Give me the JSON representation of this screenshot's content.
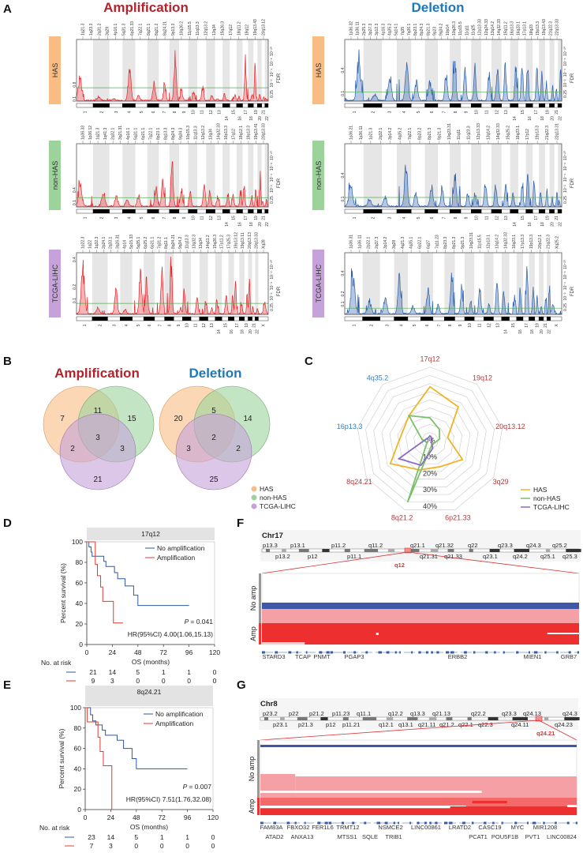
{
  "panel_labels": {
    "a": "A",
    "b": "B",
    "c": "C",
    "d": "D",
    "e": "E",
    "f": "F",
    "g": "G"
  },
  "colors": {
    "amplification": "#e8262a",
    "deletion": "#2a5fad",
    "amplification_title": "#b5222b",
    "deletion_title": "#1f78b8",
    "HAS": "#f9bd84",
    "non-HAS": "#9bd39b",
    "TCGA-LIHC": "#c6a2da",
    "threshold": "#4caf50",
    "radar_HAS": "#f0b323",
    "radar_non-HAS": "#7cbf6a",
    "radar_TCGA-LIHC": "#8a6bc2",
    "km_no_amp": "#2e5a9c",
    "km_amp": "#e0392f",
    "heat_blue": "#3f57a6",
    "heat_pink": "#f5a0a4",
    "heat_red": "#ee2f2f",
    "heat_mid": "#f46a6a"
  },
  "panel_a": {
    "amplification_title": "Amplification",
    "deletion_title": "Deletion",
    "fdr_label": "FDR",
    "right_ticks": [
      "0.25",
      "10⁻²",
      "10⁻⁴",
      "10⁻⁸",
      "10⁻²⁰"
    ],
    "chromosomes": [
      "1",
      "2",
      "3",
      "4",
      "5",
      "6",
      "7",
      "8",
      "9",
      "10",
      "11",
      "12",
      "13",
      "14",
      "15",
      "16",
      "17",
      "18",
      "19",
      "20",
      "21",
      "22"
    ],
    "chromosomes_tcga": [
      "1",
      "2",
      "3",
      "4",
      "5",
      "6",
      "7",
      "8",
      "9",
      "10",
      "11",
      "12",
      "13",
      "14",
      "15",
      "16",
      "17",
      "18",
      "19",
      "20",
      "21",
      "22",
      "X"
    ],
    "amplification": [
      {
        "sample": "HAS",
        "ylim": [
          0,
          3
        ],
        "left_ticks": [
          "0.1",
          "0.8"
        ],
        "left_tick_values": [
          0.1,
          0.8
        ],
        "threshold": 0.65,
        "peaks": [
          1.3,
          0.2,
          0.1,
          1.9,
          0.3,
          1.1,
          0.8,
          2.7,
          0.6,
          0.5,
          0.8,
          0.3,
          0.1,
          0.4,
          0.3,
          0.2,
          2.6,
          0.4,
          2.1,
          0.4,
          0.2,
          0.1
        ],
        "cytobands": [
          "1q21.3",
          "1q23.3",
          "2q31.2",
          "3q29",
          "4p16.1",
          "5q31.3",
          "6p21.33",
          "7q22.1",
          "8q21.1",
          "8q21.2",
          "8q24.21",
          "9p13.3",
          "10q26.2",
          "11p15.5",
          "11q13.3",
          "12q13.2",
          "13q34",
          "15q26.3",
          "17q12",
          "18q11.2",
          "19q12",
          "19q13.43",
          "20q13.12"
        ]
      },
      {
        "sample": "non-HAS",
        "ylim": [
          0,
          1.5
        ],
        "left_ticks": [
          "0.1",
          "0.4"
        ],
        "left_tick_values": [
          0.1,
          0.4
        ],
        "threshold": 0.22,
        "peaks": [
          0.6,
          0.4,
          0.3,
          0.2,
          0.3,
          0.5,
          0.7,
          1.3,
          0.5,
          0.4,
          0.6,
          0.5,
          0.3,
          0.3,
          0.3,
          0.4,
          0.7,
          0.3,
          0.5,
          0.7,
          0.2,
          0.2
        ],
        "cytobands": [
          "1p36.33",
          "1p36.12",
          "1q21.3",
          "1q41.3",
          "2q32.1",
          "3q21.31",
          "4p16.1",
          "5q31.1",
          "6p21.1",
          "7q22.1",
          "8p23.1",
          "8q13.3",
          "8q24.3",
          "9q34.3",
          "10p15.3",
          "11q13.3",
          "12q13.2",
          "13q34",
          "14q32.33",
          "16p13.3",
          "17q12",
          "18q12.1",
          "19p13.3",
          "19q13.41",
          "20q13.33"
        ]
      },
      {
        "sample": "TCGA-LIHC",
        "ylim": [
          0,
          0.45
        ],
        "left_ticks": [
          "0.1",
          "0.2",
          "0.4"
        ],
        "left_tick_values": [
          0.1,
          0.2,
          0.4
        ],
        "threshold": 0.08,
        "peaks": [
          0.4,
          0.05,
          0.2,
          0.04,
          0.35,
          0.3,
          0.35,
          0.42,
          0.05,
          0.2,
          0.15,
          0.1,
          0.05,
          0.12,
          0.2,
          0.15,
          0.3,
          0.1,
          0.15,
          0.35,
          0.05,
          0.05,
          0.1
        ],
        "cytobands": [
          "1p22.3",
          "1q22",
          "1q32.3",
          "2p24.1",
          "2q33.1",
          "3q26.31",
          "4p14",
          "5p15.33",
          "5q35.1",
          "6p25.2",
          "6p21.1",
          "7q31.2",
          "8q11.1",
          "8q24.21",
          "9q34.2",
          "11q13.3",
          "13q32.3",
          "13q34",
          "14q11.2",
          "15q26.3",
          "17p11.2",
          "17q25.3",
          "19p13.12",
          "19q13.11",
          "20q13.13",
          "20q13.33",
          "Xq28"
        ]
      }
    ],
    "deletion": [
      {
        "sample": "HAS",
        "ylim": [
          0,
          0.8
        ],
        "left_ticks": [
          "0.1",
          "0.4"
        ],
        "left_tick_values": [
          0.1,
          0.4
        ],
        "threshold": 0.12,
        "peaks": [
          0.55,
          0.1,
          0.35,
          0.55,
          0.3,
          0.3,
          0.4,
          0.6,
          0.45,
          0.5,
          0.4,
          0.5,
          0.55,
          0.5,
          0.55,
          0.6,
          0.6,
          0.4,
          0.3,
          0.2,
          0.2,
          0.6
        ],
        "cytobands": [
          "1p36.32",
          "1p36.11",
          "2p25.3",
          "3p27.3",
          "3p12.3",
          "4p16.3",
          "4q35.2",
          "5q14.1",
          "7q35",
          "7q36.1",
          "8p23.1",
          "8p24.3",
          "8p21.3",
          "9p23",
          "9q34.2",
          "10p14",
          "10q26.3",
          "11p15.5",
          "11q11",
          "11q25",
          "12p13.33",
          "12q24.33",
          "13q14.2",
          "14q32.33",
          "15q11.2",
          "16p13.3",
          "16q23.1",
          "17p13.1",
          "18q23",
          "19p13.3",
          "19q13.43",
          "21q22.3",
          "22q13.33"
        ]
      },
      {
        "sample": "non-HAS",
        "ylim": [
          0,
          0.8
        ],
        "left_ticks": [
          "0.1",
          "0.4"
        ],
        "left_tick_values": [
          0.1,
          0.4
        ],
        "threshold": 0.12,
        "peaks": [
          0.3,
          0.1,
          0.15,
          0.6,
          0.2,
          0.3,
          0.25,
          0.5,
          0.2,
          0.2,
          0.4,
          0.3,
          0.3,
          0.2,
          0.3,
          0.6,
          0.45,
          0.2,
          0.3,
          0.1,
          0.2,
          0.1
        ],
        "cytobands": [
          "1p36.21",
          "1p36.11",
          "1p21.3",
          "2q32.1",
          "3p14.2",
          "4q35.2",
          "7q22.1",
          "8p23.2",
          "8p21.3",
          "9p21.3",
          "10q23.31",
          "11q11",
          "11q23.3",
          "12p13.33",
          "13q14.2",
          "14q32.33",
          "15q25.2",
          "16q23.1",
          "17p12",
          "19p13.3",
          "21q22.3",
          "22q13.31"
        ]
      },
      {
        "sample": "TCGA-LIHC",
        "ylim": [
          0,
          0.6
        ],
        "left_ticks": [
          "0.1",
          "0.2",
          "0.4"
        ],
        "left_tick_values": [
          0.1,
          0.2,
          0.4
        ],
        "threshold": 0.06,
        "peaks": [
          0.45,
          0.15,
          0.2,
          0.45,
          0.1,
          0.3,
          0.1,
          0.5,
          0.3,
          0.15,
          0.3,
          0.1,
          0.4,
          0.3,
          0.2,
          0.3,
          0.55,
          0.3,
          0.2,
          0.1,
          0.2,
          0.35,
          0.1
        ],
        "cytobands": [
          "1p36.31",
          "1p36.11",
          "2p22.1",
          "2q37.3",
          "3p14.2",
          "3q28",
          "4q21.3",
          "4q35.1",
          "6p22.1",
          "6q27",
          "7q11.23",
          "8p23.3",
          "8p21.3",
          "9p21.3",
          "10q23.31",
          "11p15.5",
          "12p13.1",
          "13q14.2",
          "14q32.33",
          "16q23.1",
          "17p13.3",
          "19p13.3",
          "20p12.1",
          "21q22.3",
          "Xq25.2"
        ]
      }
    ]
  },
  "panel_b": {
    "amplification": {
      "title": "Amplification",
      "only_HAS": "7",
      "only_nonHAS": "15",
      "only_TCGA": "21",
      "HAS_nonHAS": "11",
      "HAS_TCGA": "2",
      "nonHAS_TCGA": "3",
      "all": "3"
    },
    "deletion": {
      "title": "Deletion",
      "only_HAS": "20",
      "only_nonHAS": "14",
      "only_TCGA": "25",
      "HAS_nonHAS": "5",
      "HAS_TCGA": "3",
      "nonHAS_TCGA": "2",
      "all": "2"
    },
    "legend": [
      "HAS",
      "non-HAS",
      "TCGA-LIHC"
    ]
  },
  "chart_data": [
    {
      "panel": "C",
      "type": "radar",
      "axes": [
        "17q12",
        "19q12",
        "20q13.12",
        "3q29",
        "6p21.33",
        "8q21.2",
        "8q24.21",
        "16p13.3",
        "4q35.2"
      ],
      "axis_type": [
        "amplification",
        "amplification",
        "amplification",
        "amplification",
        "amplification",
        "amplification",
        "amplification",
        "deletion",
        "deletion"
      ],
      "tick_labels": [
        "0%",
        "10%",
        "20%",
        "30%",
        "40%"
      ],
      "ticks": [
        0,
        10,
        20,
        30,
        40
      ],
      "rlim": [
        0,
        45
      ],
      "series": [
        {
          "name": "HAS",
          "values": [
            33,
            27,
            11,
            23,
            17,
            19,
            28,
            18,
            20
          ]
        },
        {
          "name": "non-HAS",
          "values": [
            14,
            9,
            6,
            3,
            3,
            40,
            2,
            5,
            20
          ]
        },
        {
          "name": "TCGA-LIHC",
          "values": [
            3,
            2,
            1,
            1,
            5,
            16,
            22,
            3,
            2
          ]
        }
      ],
      "legend": "bottom-right"
    },
    {
      "panel": "D",
      "type": "line",
      "title": "17q12",
      "xlabel": "OS (months)",
      "ylabel": "Percent survival (%)",
      "xlim": [
        0,
        120
      ],
      "ylim": [
        0,
        100
      ],
      "xticks": [
        "0",
        "24",
        "48",
        "72",
        "96",
        "120"
      ],
      "yticks": [
        "0",
        "20",
        "40",
        "60",
        "80",
        "100"
      ],
      "series": [
        {
          "name": "No amplification",
          "x": [
            0,
            2,
            4,
            5,
            16,
            18,
            26,
            29,
            36,
            44,
            48,
            96
          ],
          "y": [
            100,
            95,
            90,
            86,
            81,
            76,
            70,
            64,
            57,
            48,
            38,
            38
          ]
        },
        {
          "name": "Amplification",
          "x": [
            0,
            6,
            8,
            10,
            13,
            15,
            25,
            34
          ],
          "y": [
            100,
            100,
            78,
            67,
            56,
            42,
            21,
            21
          ]
        }
      ],
      "p_value": "= 0.041",
      "p_label": "P",
      "hr_text": "HR(95%CI) 4.00(1.06,15.13)",
      "risk_label": "No. at risk",
      "risk_table": [
        [
          "21",
          "14",
          "5",
          "1",
          "1",
          "0"
        ],
        [
          "9",
          "3",
          "0",
          "0",
          "0",
          "0"
        ]
      ]
    },
    {
      "panel": "E",
      "type": "line",
      "title": "8q24.21",
      "xlabel": "OS (months)",
      "ylabel": "Percent survival (%)",
      "xlim": [
        0,
        120
      ],
      "ylim": [
        0,
        100
      ],
      "xticks": [
        "0",
        "24",
        "48",
        "72",
        "96",
        "120"
      ],
      "yticks": [
        "0",
        "20",
        "40",
        "60",
        "80",
        "100"
      ],
      "series": [
        {
          "name": "No amplification",
          "x": [
            0,
            5,
            7,
            10,
            16,
            19,
            30,
            36,
            44,
            48,
            96
          ],
          "y": [
            100,
            93,
            87,
            83,
            78,
            73,
            68,
            60,
            50,
            40,
            40
          ]
        },
        {
          "name": "Amplification",
          "x": [
            0,
            2,
            12,
            14,
            17,
            25,
            25
          ],
          "y": [
            100,
            86,
            71,
            57,
            43,
            43,
            0
          ]
        }
      ],
      "p_value": "= 0.007",
      "p_label": "P",
      "hr_text": "HR(95%CI) 7.51(1.76,32.08)",
      "risk_label": "No. at risk",
      "risk_table": [
        [
          "23",
          "14",
          "5",
          "1",
          "1",
          "0"
        ],
        [
          "7",
          "3",
          "0",
          "0",
          "0",
          "0"
        ]
      ]
    }
  ],
  "panel_f": {
    "chromosome": "Chr17",
    "bands_top": [
      "p13.3",
      "p13.1",
      "p11.2",
      "q11.2",
      "q21.1",
      "q21.32",
      "q22",
      "q23.3",
      "q24.3",
      "q25.2"
    ],
    "bands_bottom": [
      "p13.2",
      "p12",
      "p11.1",
      "q21.31",
      "q21.33",
      "q23.1",
      "q24.2",
      "q25.1",
      "q25.3"
    ],
    "highlight": "q12",
    "group_labels": [
      "No amp",
      "Amp"
    ],
    "genes": [
      "STARD3",
      "TCAP",
      "PNMT",
      "PGAP3",
      "ERBB2",
      "MIEN1",
      "GRB7"
    ]
  },
  "panel_g": {
    "chromosome": "Chr8",
    "bands_top": [
      "p23.2",
      "p22",
      "p21.2",
      "p11.23",
      "q11.1",
      "q12.2",
      "q13.3",
      "q21.13",
      "q22.2",
      "q23.3",
      "q24.13",
      "q24.3"
    ],
    "bands_bottom": [
      "p23.1",
      "p21.3",
      "p12",
      "p11.21",
      "q12.1",
      "q13.1",
      "q21.11",
      "q21.2",
      "q22.1",
      "q22.3",
      "q24.11",
      "q24.23"
    ],
    "highlight": "q24.21",
    "group_labels": [
      "No amp",
      "Amp"
    ],
    "genes_row1": [
      "FAM83A",
      "FBXO32",
      "FER1L6",
      "TRMT12",
      "NSMCE2",
      "LINC00861",
      "LRATD2",
      "CASC19",
      "MYC",
      "MIR1208"
    ],
    "genes_row2": [
      "ATAD2",
      "ANXA13",
      "MTSS1",
      "SQLE",
      "TRIB1",
      "PCAT1",
      "POU5F1B",
      "PVT1",
      "LINC00824"
    ]
  }
}
